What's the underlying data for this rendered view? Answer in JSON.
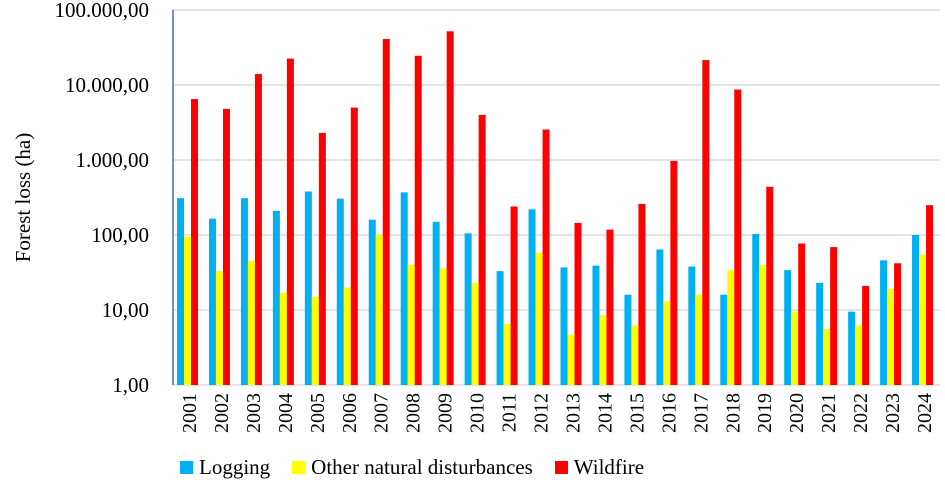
{
  "chart_data": {
    "type": "bar",
    "title": "",
    "xlabel": "",
    "ylabel": "Forest loss (ha)",
    "yscale": "log",
    "ylim": [
      1,
      100000
    ],
    "yticks": [
      1,
      10,
      100,
      1000,
      10000,
      100000
    ],
    "ytick_labels": [
      "1,00",
      "10,00",
      "100,00",
      "1.000,00",
      "10.000,00",
      "100.000,00"
    ],
    "grid": true,
    "legend_position": "bottom",
    "categories": [
      "2001",
      "2002",
      "2003",
      "2004",
      "2005",
      "2006",
      "2007",
      "2008",
      "2009",
      "2010",
      "2011",
      "2012",
      "2013",
      "2014",
      "2015",
      "2016",
      "2017",
      "2018",
      "2019",
      "2020",
      "2021",
      "2022",
      "2023",
      "2024"
    ],
    "series": [
      {
        "name": "Logging",
        "color": "#00b0f0",
        "values": [
          310,
          165,
          310,
          210,
          380,
          305,
          160,
          370,
          150,
          105,
          33,
          220,
          37,
          39,
          16,
          64,
          38,
          16,
          103,
          34,
          23,
          9.5,
          46,
          100
        ]
      },
      {
        "name": "Other natural disturbances",
        "color": "#ffff00",
        "values": [
          95,
          33,
          45,
          17,
          15,
          20,
          100,
          40,
          36,
          23,
          6.5,
          58,
          4.7,
          8.5,
          6.2,
          13,
          16,
          34,
          40,
          9.5,
          5.6,
          6.2,
          19,
          55
        ]
      },
      {
        "name": "Wildfire",
        "color": "#ff0000",
        "values": [
          6500,
          4800,
          14000,
          22500,
          2300,
          5000,
          41000,
          24500,
          52000,
          4000,
          240,
          2550,
          145,
          118,
          260,
          970,
          21500,
          8700,
          440,
          77,
          69,
          21,
          42,
          250
        ]
      }
    ]
  }
}
